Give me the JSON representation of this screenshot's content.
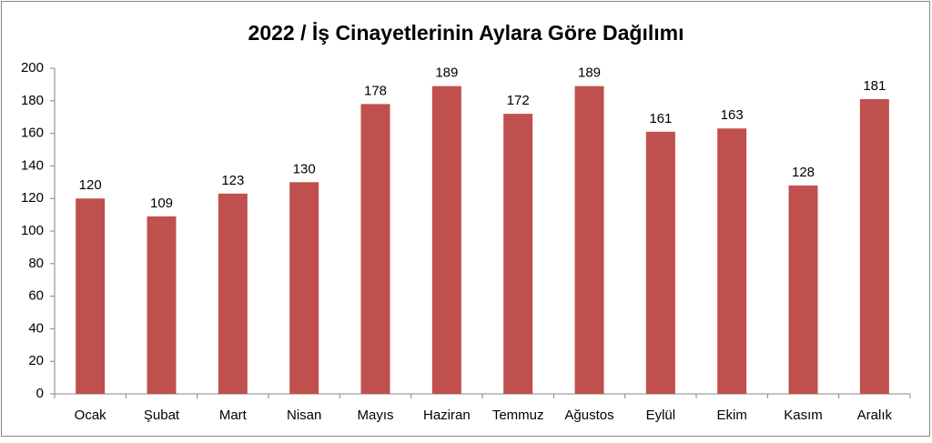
{
  "chart_data": {
    "type": "bar",
    "title": "2022 / İş Cinayetlerinin Aylara Göre Dağılımı",
    "categories": [
      "Ocak",
      "Şubat",
      "Mart",
      "Nisan",
      "Mayıs",
      "Haziran",
      "Temmuz",
      "Ağustos",
      "Eylül",
      "Ekim",
      "Kasım",
      "Aralık"
    ],
    "values": [
      120,
      109,
      123,
      130,
      178,
      189,
      172,
      189,
      161,
      163,
      128,
      181
    ],
    "color": "#c0504d",
    "ylim": [
      0,
      200
    ],
    "yticks": [
      0,
      20,
      40,
      60,
      80,
      100,
      120,
      140,
      160,
      180,
      200
    ],
    "grid": false
  }
}
